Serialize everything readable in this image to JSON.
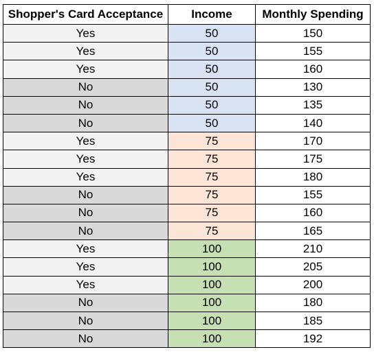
{
  "table": {
    "headers": [
      "Shopper's Card Acceptance",
      "Income",
      "Monthly Spending"
    ],
    "rows": [
      [
        "Yes",
        "50",
        "150"
      ],
      [
        "Yes",
        "50",
        "155"
      ],
      [
        "Yes",
        "50",
        "160"
      ],
      [
        "No",
        "50",
        "130"
      ],
      [
        "No",
        "50",
        "135"
      ],
      [
        "No",
        "50",
        "140"
      ],
      [
        "Yes",
        "75",
        "170"
      ],
      [
        "Yes",
        "75",
        "175"
      ],
      [
        "Yes",
        "75",
        "180"
      ],
      [
        "No",
        "75",
        "155"
      ],
      [
        "No",
        "75",
        "160"
      ],
      [
        "No",
        "75",
        "165"
      ],
      [
        "Yes",
        "100",
        "210"
      ],
      [
        "Yes",
        "100",
        "205"
      ],
      [
        "Yes",
        "100",
        "200"
      ],
      [
        "No",
        "100",
        "180"
      ],
      [
        "No",
        "100",
        "185"
      ],
      [
        "No",
        "100",
        "192"
      ]
    ]
  },
  "colors": {
    "acceptance_yes": "#f2f2f2",
    "acceptance_no": "#d9d9d9",
    "income_50": "#dae3f3",
    "income_75": "#fce4d6",
    "income_100": "#c6e0b4",
    "spending": "#ffffff",
    "border": "#000000"
  }
}
